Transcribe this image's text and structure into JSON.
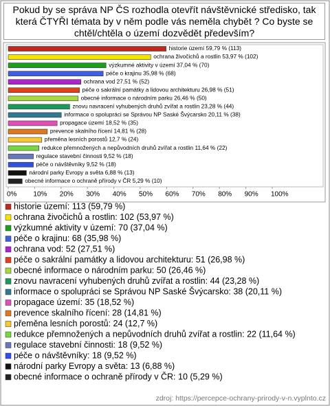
{
  "chart_data": {
    "type": "bar",
    "orientation": "horizontal",
    "title": "Pokud by se správa NP ČS rozhodla otevřít návštěvnické středisko, tak která ČTYŘI témata by v něm podle vás neměla chybět ? Co byste se chtěl/chtěla o území dozvědět především?",
    "categories": [
      "historie území",
      "ochrana živočichů a rostlin",
      "výzkumné aktivity v území",
      "péče o krajinu",
      "ochrana vod",
      "péče o sakrální památky a lidovou architekturu",
      "obecné informace o národním parku",
      "znovu navracení vyhubených druhů zvířat a rostlin",
      "informace o spolupráci se Správou NP Saské Švýcarsko",
      "propagace území",
      "prevence skalního řícení",
      "přeměna lesních porostů",
      "redukce přemnožených a nepůvodních druhů zvířat a rostlin",
      "regulace stavební činnosti",
      "péče o návštěvníky",
      "národní parky Evropy a světa",
      "obecné informace o ochraně přírody v ČR"
    ],
    "values": [
      59.79,
      53.97,
      37.04,
      35.98,
      27.51,
      26.98,
      26.46,
      23.28,
      20.11,
      18.52,
      14.81,
      12.7,
      11.64,
      9.52,
      9.52,
      6.88,
      5.29
    ],
    "value_labels": [
      "historie území 59,79 % (113)",
      "ochrana živočichů a rostlin 53,97 % (102)",
      "výzkumné aktivity v území 37,04 % (70)",
      "péče o krajinu 35,98 % (68)",
      "ochrana vod 27,51 % (52)",
      "péče o sakrální památky a lidovou architekturu 26,98 % (51)",
      "obecné informace o národním parku 26,46 % (50)",
      "znovu navracení vyhubených druhů zvířat a rostlin 23,28 % (44)",
      "informace o spolupráci se Správou NP Saské Švýcarsko 20,11 % (38)",
      "propagace území 18,52 % (35)",
      "prevence skalního řícení 14,81 % (28)",
      "přeměna lesních porostů 12,7 % (24)",
      "redukce přemnožených a nepůvodních druhů zvířat a rostlin 11,64 % (22)",
      "regulace stavební činnosti 9,52 % (18)",
      "péče o návštěvníky 9,52 % (18)",
      "národní parky Evropy a světa 6,88 % (13)",
      "obecné informace o ochraně přírody v ČR 5,29 % (10)"
    ],
    "legend_labels": [
      "historie území: 113 (59,79 %)",
      "ochrana živočichů a rostlin: 102 (53,97 %)",
      "výzkumné aktivity v území: 70 (37,04 %)",
      "péče o krajinu: 68 (35,98 %)",
      "ochrana vod: 52 (27,51 %)",
      "péče o sakrální památky a lidovou architekturu: 51 (26,98 %)",
      "obecné informace o národním parku: 50 (26,46 %)",
      "znovu navracení vyhubených druhů zvířat a rostlin: 44 (23,28 %)",
      "informace o spolupráci se Správou NP Saské Švýcarsko: 38 (20,11 %)",
      "propagace území: 35 (18,52 %)",
      "prevence skalního řícení: 28 (14,81 %)",
      "přeměna lesních porostů: 24 (12,7 %)",
      "redukce přemnožených a nepůvodních druhů zvířat a rostlin: 22 (11,64 %)",
      "regulace stavební činnosti: 18 (9,52 %)",
      "péče o návštěvníky: 18 (9,52 %)",
      "národní parky Evropy a světa: 13 (6,88 %)",
      "obecné informace o ochraně přírody v ČR: 10 (5,29 %)"
    ],
    "colors": [
      "#c0281c",
      "#f5e400",
      "#1e9e1e",
      "#3f5fe0",
      "#b022cc",
      "#e0401a",
      "#a8d840",
      "#1a9a5a",
      "#2f7a90",
      "#e050b8",
      "#e07820",
      "#f8c830",
      "#78d840",
      "#6878b8",
      "#3050e0",
      "#111111",
      "#222222"
    ],
    "xlim": [
      0,
      100
    ],
    "xticks": [
      {
        "value": 0,
        "label": "0%"
      },
      {
        "value": 10,
        "label": "10%"
      },
      {
        "value": 20,
        "label": "20%"
      },
      {
        "value": 30,
        "label": "30%"
      },
      {
        "value": 40,
        "label": "40%"
      },
      {
        "value": 50,
        "label": "50%"
      },
      {
        "value": 60,
        "label": "60%"
      },
      {
        "value": 70,
        "label": "70%"
      },
      {
        "value": 80,
        "label": "80%"
      },
      {
        "value": 90,
        "label": "90%"
      },
      {
        "value": 100,
        "label": "100%"
      }
    ],
    "grid": false,
    "source": "zdroj: https://percepce-ochrany-prirody-v-n.vyplnto.cz"
  }
}
